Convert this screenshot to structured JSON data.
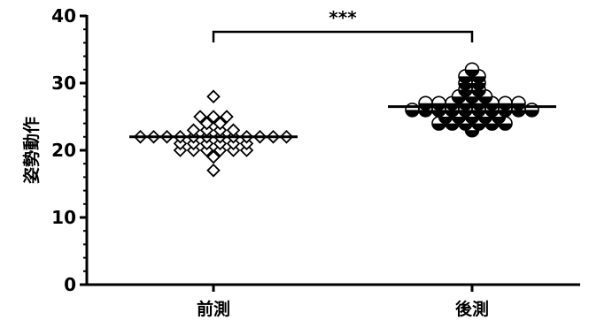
{
  "chart_data": {
    "type": "scatter",
    "ylabel": "姿勢動作",
    "categories": [
      "前測",
      "後測"
    ],
    "ylim": [
      0,
      40
    ],
    "yticks": [
      0,
      10,
      20,
      30,
      40
    ],
    "grid": false,
    "significance": {
      "label": "***",
      "between": [
        0,
        1
      ]
    },
    "series": [
      {
        "category": "前測",
        "marker": "diamond",
        "mean": 22,
        "values": [
          28,
          25,
          25,
          24,
          24,
          25,
          23,
          23,
          23,
          23,
          22,
          22,
          22,
          22,
          22,
          22,
          22,
          22,
          22,
          22,
          22,
          22,
          21,
          21,
          21,
          21,
          21,
          21,
          20,
          20,
          20,
          20,
          20,
          20,
          19,
          17
        ]
      },
      {
        "category": "後測",
        "marker": "half-filled-circle",
        "mean": 26.5,
        "values": [
          32,
          31,
          31,
          30,
          30,
          29,
          29,
          28,
          28,
          28,
          27,
          27,
          27,
          27,
          27,
          27,
          27,
          27,
          26,
          26,
          26,
          26,
          26,
          26,
          26,
          26,
          26,
          26,
          25,
          25,
          25,
          25,
          25,
          24,
          24,
          24,
          24,
          24,
          24,
          23
        ]
      }
    ]
  }
}
